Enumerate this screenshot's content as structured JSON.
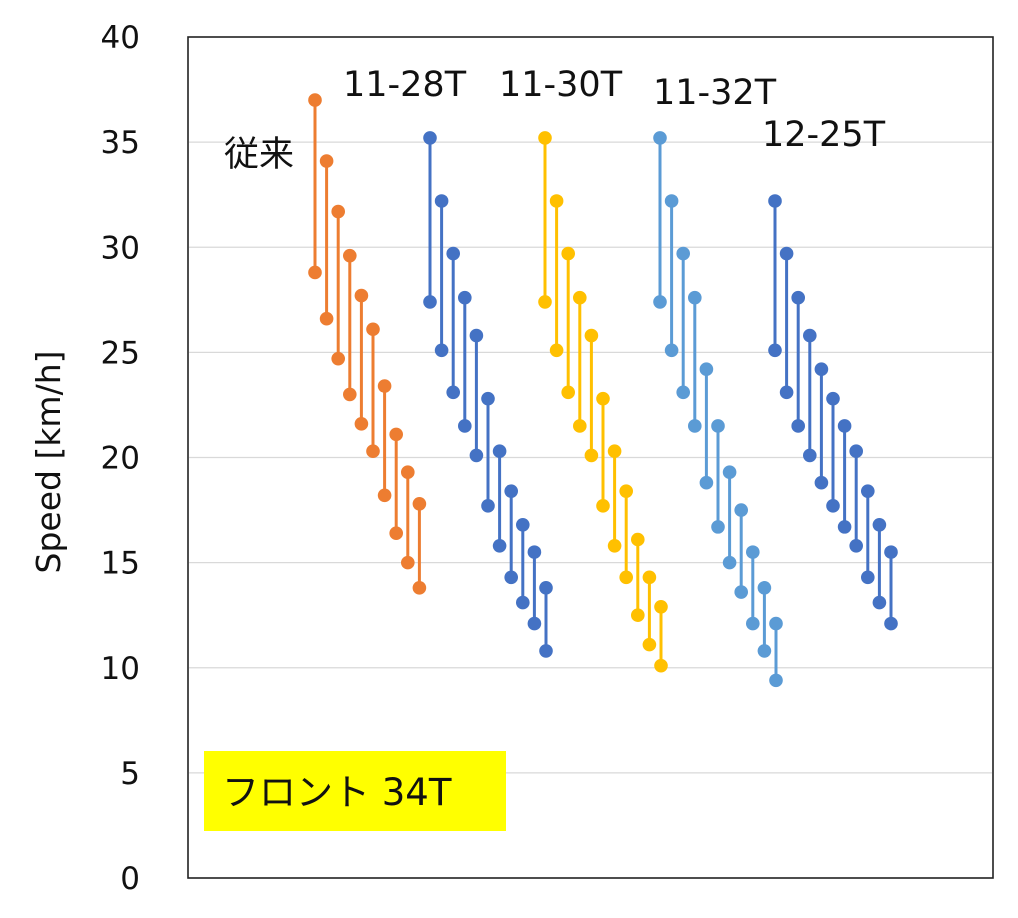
{
  "chart_data": {
    "type": "range-dot",
    "title": "",
    "xlabel": "",
    "ylabel": "Speed [km/h]",
    "ylim": [
      0,
      40
    ],
    "yticks": [
      "0",
      "5",
      "10",
      "15",
      "20",
      "25",
      "30",
      "35",
      "40"
    ],
    "grid": true,
    "annotation": "フロント 34T",
    "annotation_bg": "#ffff00",
    "series": [
      {
        "name": "従来",
        "color": "#ed7d31",
        "highs": [
          37.0,
          34.1,
          31.7,
          29.6,
          27.7,
          26.1,
          23.4,
          21.1,
          19.3,
          17.8
        ],
        "lows": [
          28.8,
          26.6,
          24.7,
          23.0,
          21.6,
          20.3,
          18.2,
          16.4,
          15.0,
          13.8
        ]
      },
      {
        "name": "11-28T",
        "color": "#4472c4",
        "highs": [
          35.2,
          32.2,
          29.7,
          27.6,
          25.8,
          22.8,
          20.3,
          18.4,
          16.8,
          15.5,
          13.8
        ],
        "lows": [
          27.4,
          25.1,
          23.1,
          21.5,
          20.1,
          17.7,
          15.8,
          14.3,
          13.1,
          12.1,
          10.8
        ]
      },
      {
        "name": "11-30T",
        "color": "#ffc000",
        "highs": [
          35.2,
          32.2,
          29.7,
          27.6,
          25.8,
          22.8,
          20.3,
          18.4,
          16.1,
          14.3,
          12.9
        ],
        "lows": [
          27.4,
          25.1,
          23.1,
          21.5,
          20.1,
          17.7,
          15.8,
          14.3,
          12.5,
          11.1,
          10.1
        ]
      },
      {
        "name": "11-32T",
        "color": "#5b9bd5",
        "highs": [
          35.2,
          32.2,
          29.7,
          27.6,
          24.2,
          21.5,
          19.3,
          17.5,
          15.5,
          13.8,
          12.1
        ],
        "lows": [
          27.4,
          25.1,
          23.1,
          21.5,
          18.8,
          16.7,
          15.0,
          13.6,
          12.1,
          10.8,
          9.4
        ]
      },
      {
        "name": "12-25T",
        "color": "#4472c4",
        "highs": [
          32.2,
          29.7,
          27.6,
          25.8,
          24.2,
          22.8,
          21.5,
          20.3,
          18.4,
          16.8,
          15.5
        ],
        "lows": [
          25.1,
          23.1,
          21.5,
          20.1,
          18.8,
          17.7,
          16.7,
          15.8,
          14.3,
          13.1,
          12.1
        ]
      }
    ]
  }
}
